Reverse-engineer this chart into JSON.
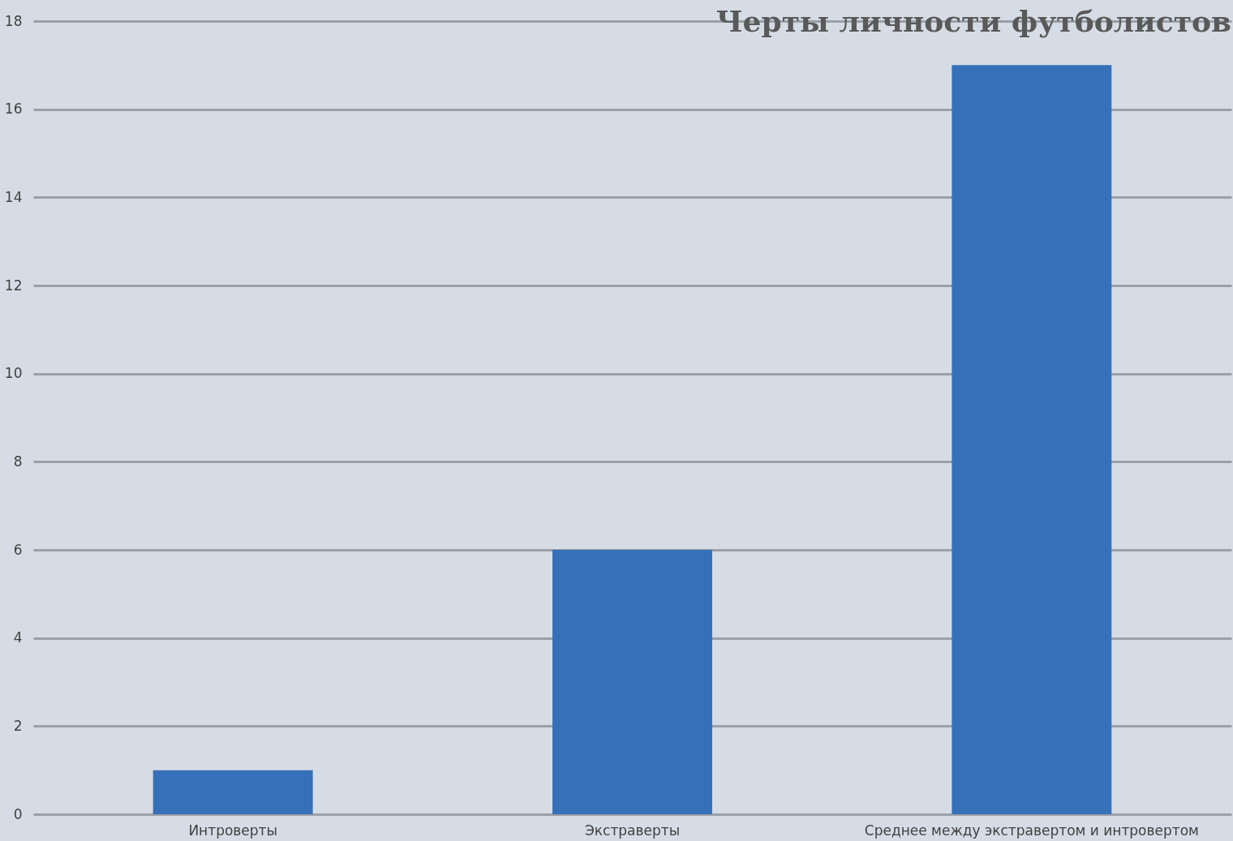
{
  "chart_data": {
    "type": "bar",
    "title": "Черты личности футболистов",
    "categories": [
      "Интроверты",
      "Экстраверты",
      "Среднее между экстравертом и интровертом"
    ],
    "values": [
      1,
      6,
      17
    ],
    "color": "#3570b8",
    "ylim": [
      0,
      18
    ],
    "yticks": [
      0,
      2,
      4,
      6,
      8,
      10,
      12,
      14,
      16,
      18
    ],
    "grid": "y"
  }
}
